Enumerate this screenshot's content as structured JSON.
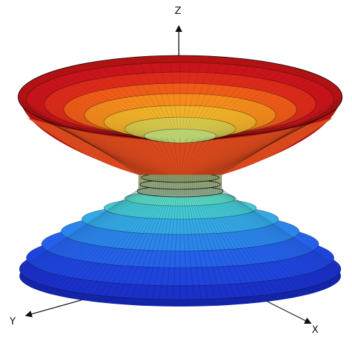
{
  "axes": {
    "z_label": "Z",
    "y_label": "Y",
    "x_label": "X"
  },
  "colors": {
    "rim_dark": "#b21212",
    "upper_bands": [
      "#c8141a",
      "#dc2a1a",
      "#ee5a18",
      "#f48a1c",
      "#f0b028",
      "#d8c84a",
      "#b8d070"
    ],
    "neck": "#9aa87a",
    "lower_bands": [
      "#58d8c4",
      "#42c8d4",
      "#34a8e6",
      "#2a84ea",
      "#2460e8",
      "#1e44dc",
      "#1a30c8"
    ],
    "mesh": "#0a0a0a"
  }
}
